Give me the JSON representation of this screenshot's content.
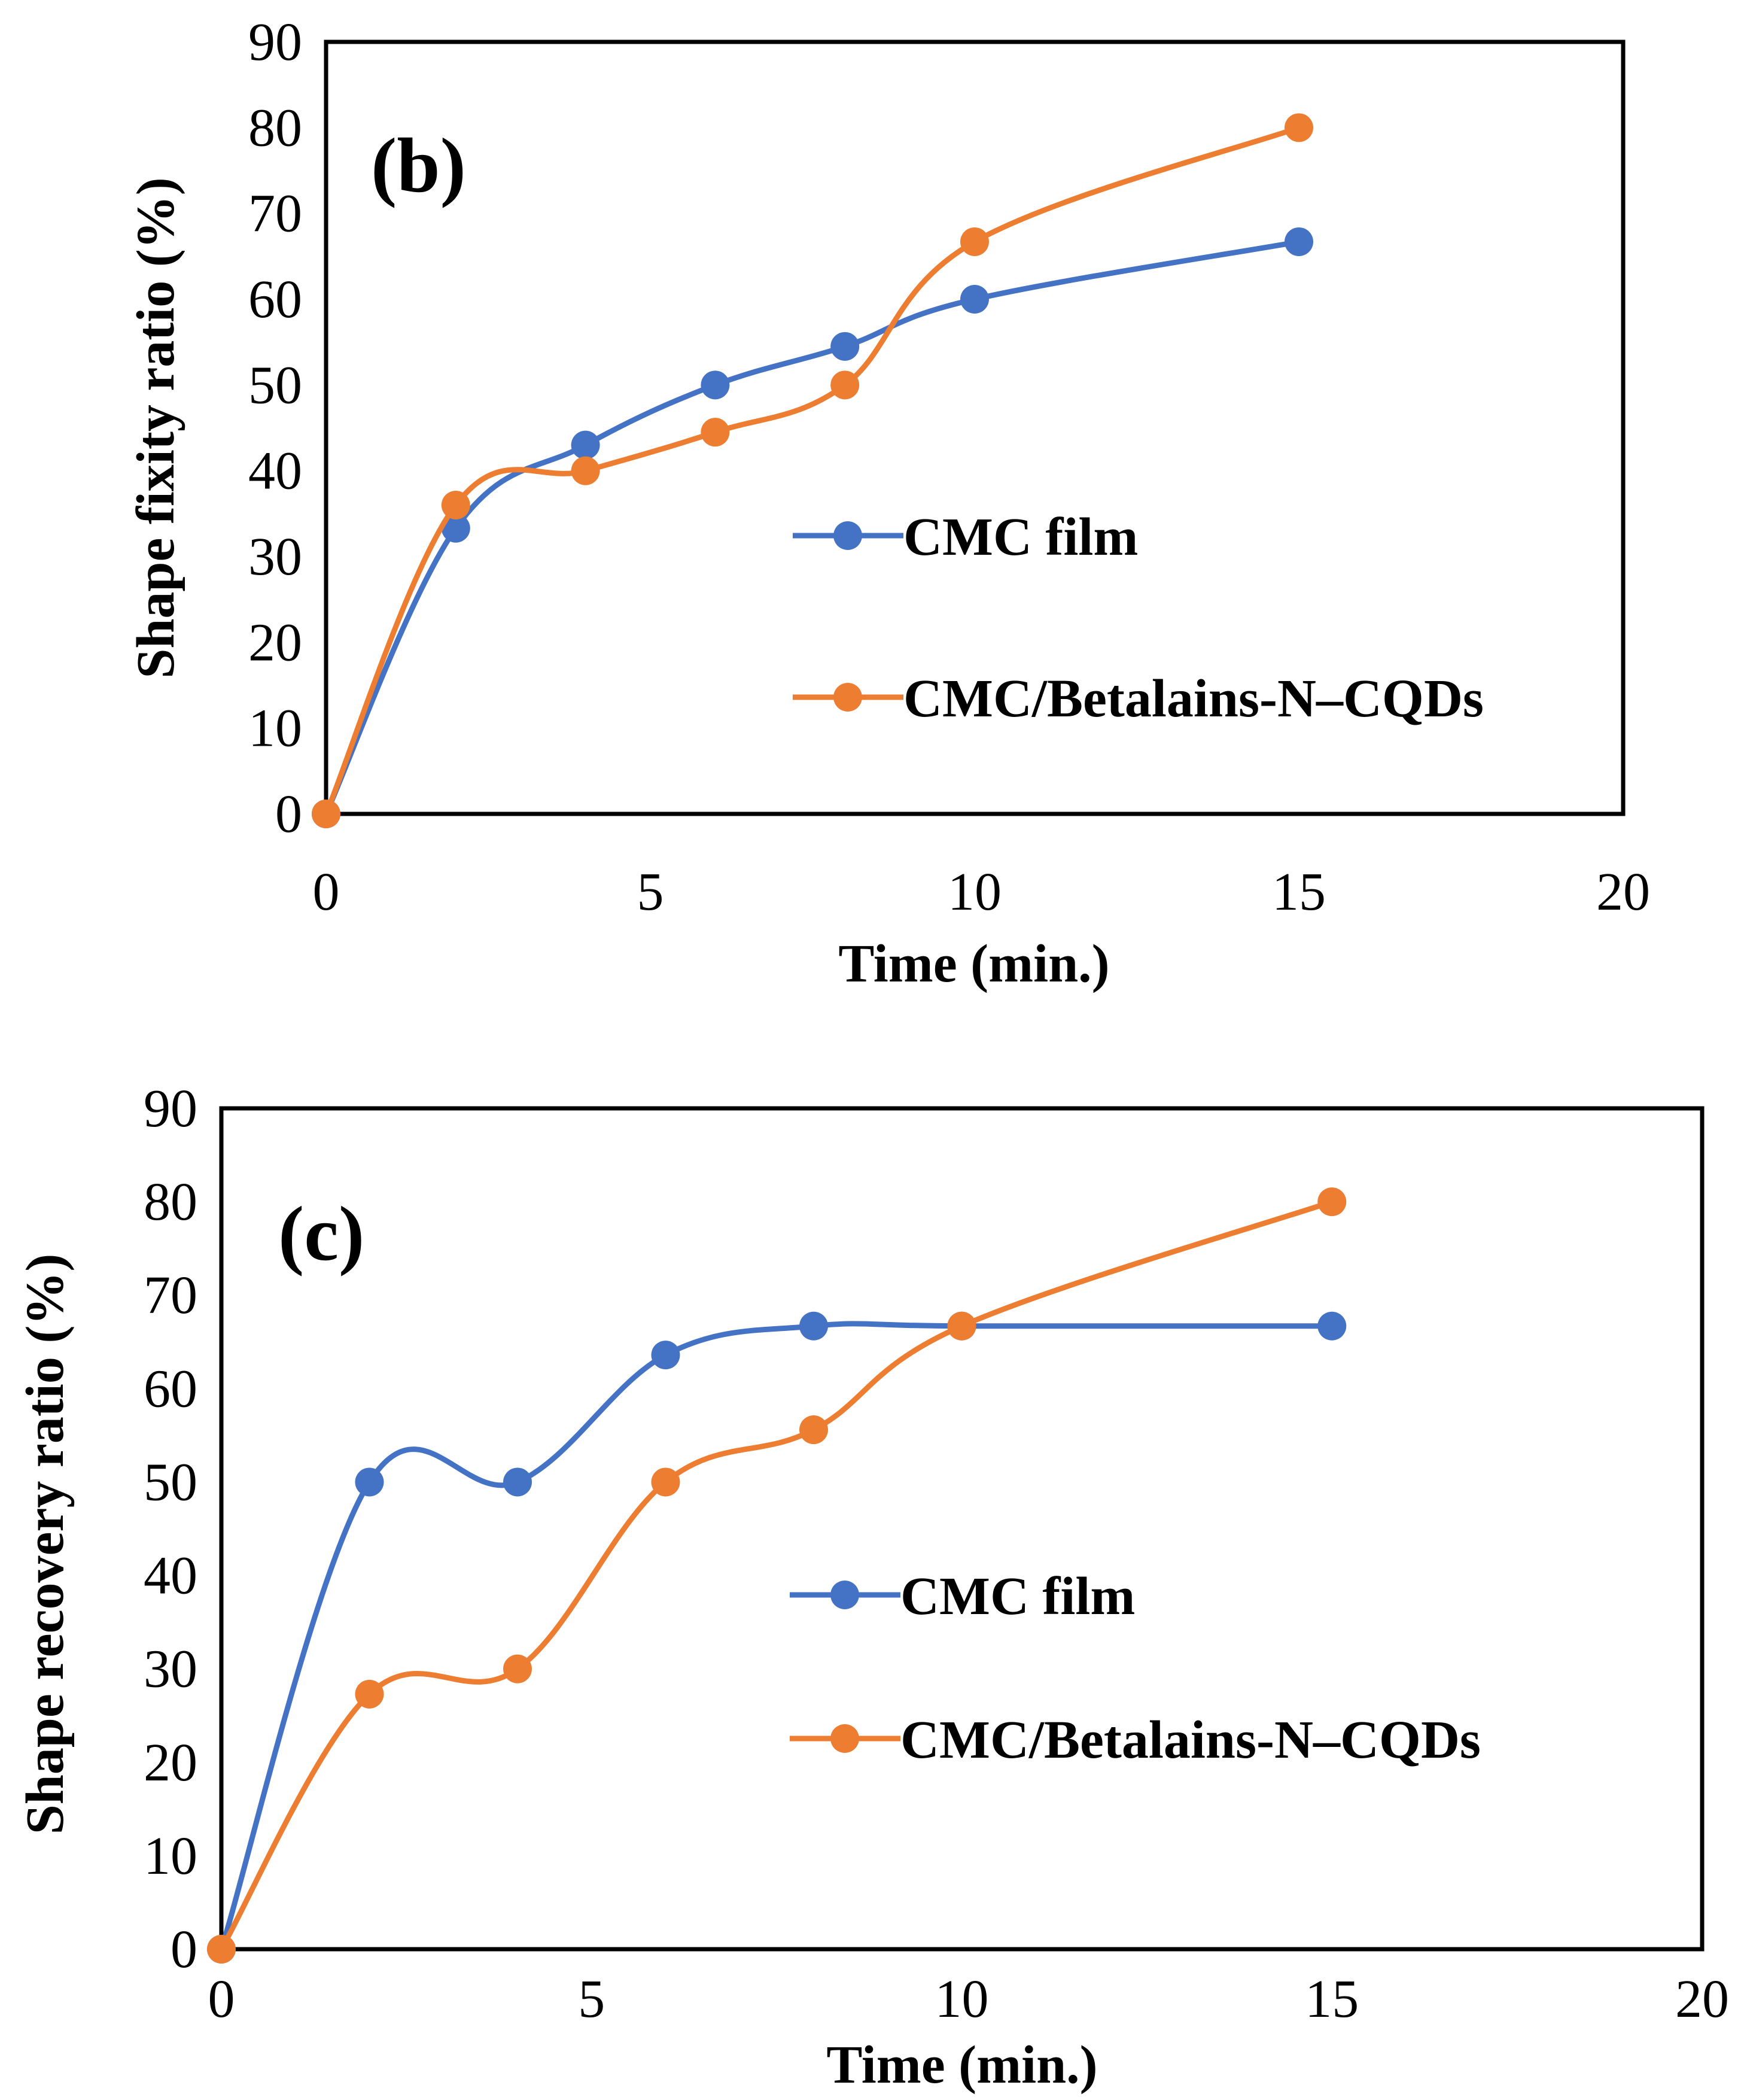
{
  "chart_data": [
    {
      "type": "line",
      "panel_label": "(b)",
      "xlabel": "Time (min.)",
      "ylabel": "Shape fixity ratio (%)",
      "xlim": [
        0,
        20
      ],
      "ylim": [
        0,
        90
      ],
      "xticks": [
        0,
        5,
        10,
        15,
        20
      ],
      "yticks": [
        0,
        10,
        20,
        30,
        40,
        50,
        60,
        70,
        80,
        90
      ],
      "smooth": true,
      "legend_position": "center-right",
      "series": [
        {
          "name": "CMC film",
          "color": "#4472C4",
          "points": [
            [
              0,
              0
            ],
            [
              2,
              33.3
            ],
            [
              4,
              43
            ],
            [
              6,
              50
            ],
            [
              8,
              54.5
            ],
            [
              10,
              60
            ],
            [
              15,
              66.7
            ]
          ]
        },
        {
          "name": "CMC/Betalains-N–CQDs",
          "color": "#ED7D31",
          "points": [
            [
              0,
              0
            ],
            [
              2,
              36
            ],
            [
              4,
              40
            ],
            [
              6,
              44.5
            ],
            [
              8,
              50
            ],
            [
              10,
              66.7
            ],
            [
              15,
              80
            ]
          ]
        }
      ]
    },
    {
      "type": "line",
      "panel_label": "(c)",
      "xlabel": "Time (min.)",
      "ylabel": "Shape recovery ratio (%)",
      "xlim": [
        0,
        20
      ],
      "ylim": [
        0,
        90
      ],
      "xticks": [
        0,
        5,
        10,
        15,
        20
      ],
      "yticks": [
        0,
        10,
        20,
        30,
        40,
        50,
        60,
        70,
        80,
        90
      ],
      "smooth": true,
      "legend_position": "center-right",
      "series": [
        {
          "name": "CMC film",
          "color": "#4472C4",
          "points": [
            [
              0,
              0
            ],
            [
              2,
              50
            ],
            [
              4,
              50
            ],
            [
              6,
              63.6
            ],
            [
              8,
              66.7
            ],
            [
              10,
              66.7
            ],
            [
              15,
              66.7
            ]
          ]
        },
        {
          "name": "CMC/Betalains-N–CQDs",
          "color": "#ED7D31",
          "points": [
            [
              0,
              0
            ],
            [
              2,
              27.3
            ],
            [
              4,
              30
            ],
            [
              6,
              50
            ],
            [
              8,
              55.6
            ],
            [
              10,
              66.7
            ],
            [
              15,
              80
            ]
          ]
        }
      ]
    }
  ]
}
